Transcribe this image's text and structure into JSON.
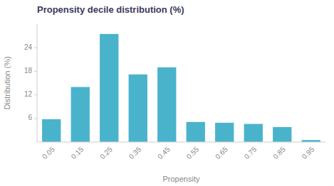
{
  "chart_data": {
    "type": "bar",
    "title": "Propensity decile distribution (%)",
    "xlabel": "Propensity",
    "ylabel": "Distribution (%)",
    "categories": [
      "0.05",
      "0.15",
      "0.25",
      "0.35",
      "0.45",
      "0.55",
      "0.65",
      "0.75",
      "0.85",
      "0.95"
    ],
    "values": [
      5.8,
      14.0,
      27.5,
      17.2,
      19.0,
      5.1,
      4.9,
      4.6,
      3.8,
      0.5
    ],
    "color": "#4ab3cc",
    "ylim": [
      0,
      30
    ],
    "yticks": [
      6,
      12,
      18,
      24
    ],
    "grid": false
  }
}
